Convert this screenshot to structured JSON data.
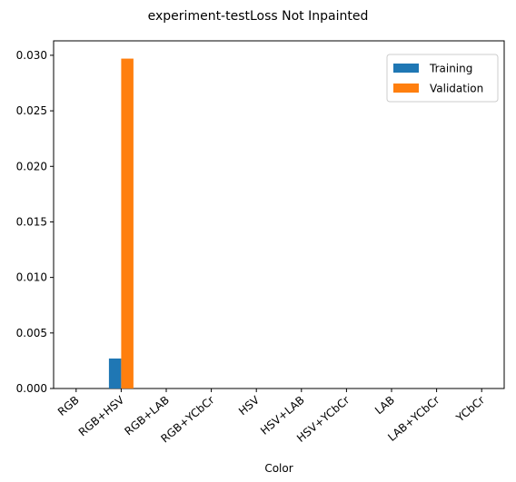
{
  "chart_data": {
    "type": "bar",
    "title": "experiment-testLoss Not Inpainted",
    "xlabel": "Color",
    "ylabel": "",
    "categories": [
      "RGB",
      "RGB+HSV",
      "RGB+LAB",
      "RGB+YCbCr",
      "HSV",
      "HSV+LAB",
      "HSV+YCbCr",
      "LAB",
      "LAB+YCbCr",
      "YCbCr"
    ],
    "series": [
      {
        "name": "Training",
        "color": "#1f77b4",
        "values": [
          0,
          0.0027,
          0,
          0,
          0,
          0,
          0,
          0,
          0,
          0
        ]
      },
      {
        "name": "Validation",
        "color": "#ff7f0e",
        "values": [
          0,
          0.0297,
          0,
          0,
          0,
          0,
          0,
          0,
          0,
          0
        ]
      }
    ],
    "ylim": [
      0,
      0.0313
    ],
    "yticks": [
      {
        "value": 0.0,
        "label": "0.000"
      },
      {
        "value": 0.005,
        "label": "0.005"
      },
      {
        "value": 0.01,
        "label": "0.010"
      },
      {
        "value": 0.015,
        "label": "0.015"
      },
      {
        "value": 0.02,
        "label": "0.020"
      },
      {
        "value": 0.025,
        "label": "0.025"
      },
      {
        "value": 0.03,
        "label": "0.030"
      }
    ],
    "grid": false,
    "legend": "top-right"
  }
}
